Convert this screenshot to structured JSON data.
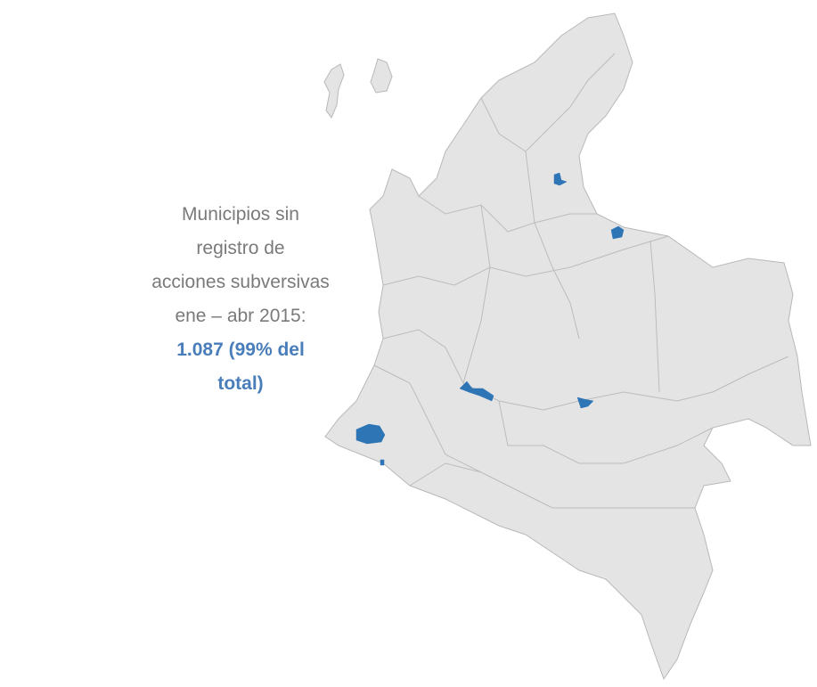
{
  "caption": {
    "lines": [
      "Municipios sin registro de",
      "acciones subversivas",
      "ene – abr 2015:"
    ],
    "highlight": "1.087 (99% del total)"
  }
}
